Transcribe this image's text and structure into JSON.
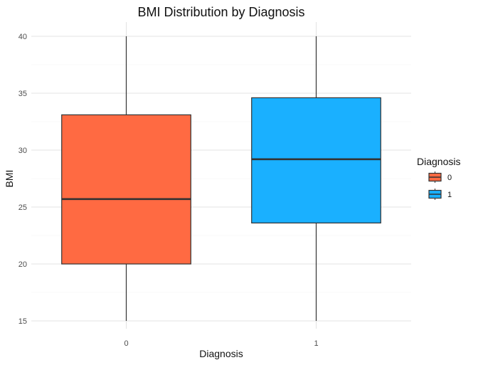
{
  "chart_data": {
    "type": "box",
    "title": "BMI Distribution by Diagnosis",
    "xlabel": "Diagnosis",
    "ylabel": "BMI",
    "categories": [
      "0",
      "1"
    ],
    "ylim": [
      15,
      40
    ],
    "yticks": [
      15,
      20,
      25,
      30,
      35,
      40
    ],
    "grid": true,
    "legend": {
      "title": "Diagnosis",
      "position": "right",
      "labels": [
        "0",
        "1"
      ]
    },
    "series": [
      {
        "category": "0",
        "color": "#FF6A42",
        "min": 15,
        "q1": 20,
        "median": 25.7,
        "q3": 33.1,
        "max": 40
      },
      {
        "category": "1",
        "color": "#1AB0FF",
        "min": 15,
        "q1": 23.6,
        "median": 29.2,
        "q3": 34.6,
        "max": 40
      }
    ]
  }
}
